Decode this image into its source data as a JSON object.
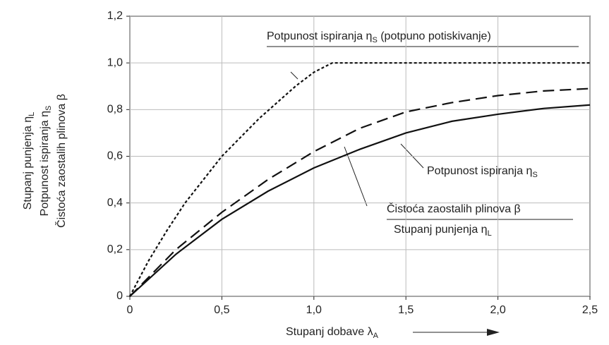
{
  "chart_data": {
    "type": "line",
    "xlabel": {
      "text": "Stupanj dobave λ",
      "sub": "A"
    },
    "ylabel": [
      {
        "text": "Stupanj punjenja η",
        "sub": "L"
      },
      {
        "text": "Potpunost ispiranja η",
        "sub": "S"
      },
      {
        "text": "Čistoća zaostalih plinova β"
      }
    ],
    "xlim": [
      0,
      2.5
    ],
    "ylim": [
      0,
      1.2
    ],
    "xticks": [
      0,
      {
        "value": 0.5,
        "label": "0,5"
      },
      {
        "value": 1.0,
        "label": "1,0"
      },
      {
        "value": 1.5,
        "label": "1,5"
      },
      {
        "value": 2.0,
        "label": "2,0"
      },
      {
        "value": 2.5,
        "label": "2,5"
      }
    ],
    "yticks": [
      0,
      {
        "value": 0.2,
        "label": "0,2"
      },
      {
        "value": 0.4,
        "label": "0,4"
      },
      {
        "value": 0.6,
        "label": "0,6"
      },
      {
        "value": 0.8,
        "label": "0,8"
      },
      {
        "value": 1.0,
        "label": "1,0"
      },
      {
        "value": 1.2,
        "label": "1,2"
      }
    ],
    "grid": true,
    "series": [
      {
        "color": "#111111",
        "dash": "dotted",
        "x": [
          0,
          0.1,
          0.2,
          0.3,
          0.4,
          0.5,
          0.6,
          0.7,
          0.8,
          0.9,
          1.0,
          1.1,
          2.5
        ],
        "values": [
          0,
          0.15,
          0.28,
          0.4,
          0.5,
          0.6,
          0.68,
          0.76,
          0.83,
          0.9,
          0.96,
          1.0,
          1.0
        ]
      },
      {
        "color": "#111111",
        "dash": "dashed",
        "x": [
          0,
          0.25,
          0.5,
          0.75,
          1.0,
          1.25,
          1.5,
          1.75,
          2.0,
          2.25,
          2.5
        ],
        "values": [
          0,
          0.2,
          0.36,
          0.5,
          0.62,
          0.72,
          0.79,
          0.83,
          0.86,
          0.88,
          0.89
        ]
      },
      {
        "color": "#111111",
        "dash": "solid",
        "x": [
          0,
          0.25,
          0.5,
          0.75,
          1.0,
          1.25,
          1.5,
          1.75,
          2.0,
          2.25,
          2.5
        ],
        "values": [
          0,
          0.18,
          0.33,
          0.45,
          0.55,
          0.63,
          0.7,
          0.75,
          0.78,
          0.805,
          0.82
        ]
      }
    ],
    "annotations": [
      {
        "text": "Potpunost ispiranja η",
        "sub": "S",
        "tail": " (potpuno potiskivanje)"
      },
      {
        "text": "Potpunost ispiranja η",
        "sub": "S"
      },
      {
        "text": "Čistoća zaostalih plinova β"
      },
      {
        "text": "Stupanj punjenja η",
        "sub": "L"
      }
    ]
  }
}
